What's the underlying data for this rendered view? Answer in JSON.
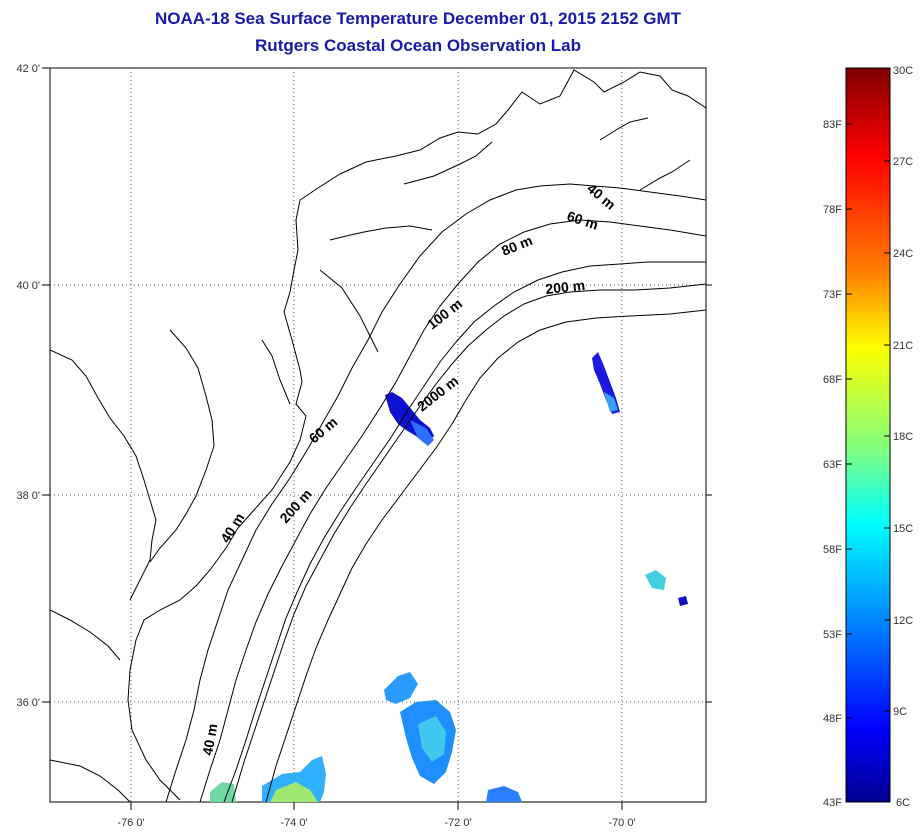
{
  "header": {
    "title_line1": "NOAA-18 Sea Surface Temperature December 01, 2015 2152 GMT",
    "title_line2": "Rutgers Coastal Ocean Observation Lab"
  },
  "map": {
    "lon_ticks": [
      "-76 0'",
      "-74 0'",
      "-72 0'",
      "-70 0'"
    ],
    "lat_ticks": [
      "42 0'",
      "40 0'",
      "38 0'",
      "36 0'"
    ],
    "contour_labels": [
      "40 m",
      "60 m",
      "80 m",
      "100 m",
      "200 m",
      "2000 m",
      "60 m",
      "40 m",
      "200 m",
      "40 m"
    ],
    "colors": {
      "land_line": "#000000",
      "grid": "#555555"
    }
  },
  "colorbar": {
    "fahrenheit_labels": [
      "83F",
      "78F",
      "73F",
      "68F",
      "63F",
      "58F",
      "53F",
      "48F",
      "43F"
    ],
    "celsius_labels": [
      "30C",
      "27C",
      "24C",
      "21C",
      "18C",
      "15C",
      "12C",
      "9C",
      "6C"
    ],
    "gradient": [
      "#7f0000",
      "#ff0000",
      "#ff8000",
      "#ffff00",
      "#80ff80",
      "#00ffff",
      "#0080ff",
      "#0000ff",
      "#00008f"
    ]
  }
}
